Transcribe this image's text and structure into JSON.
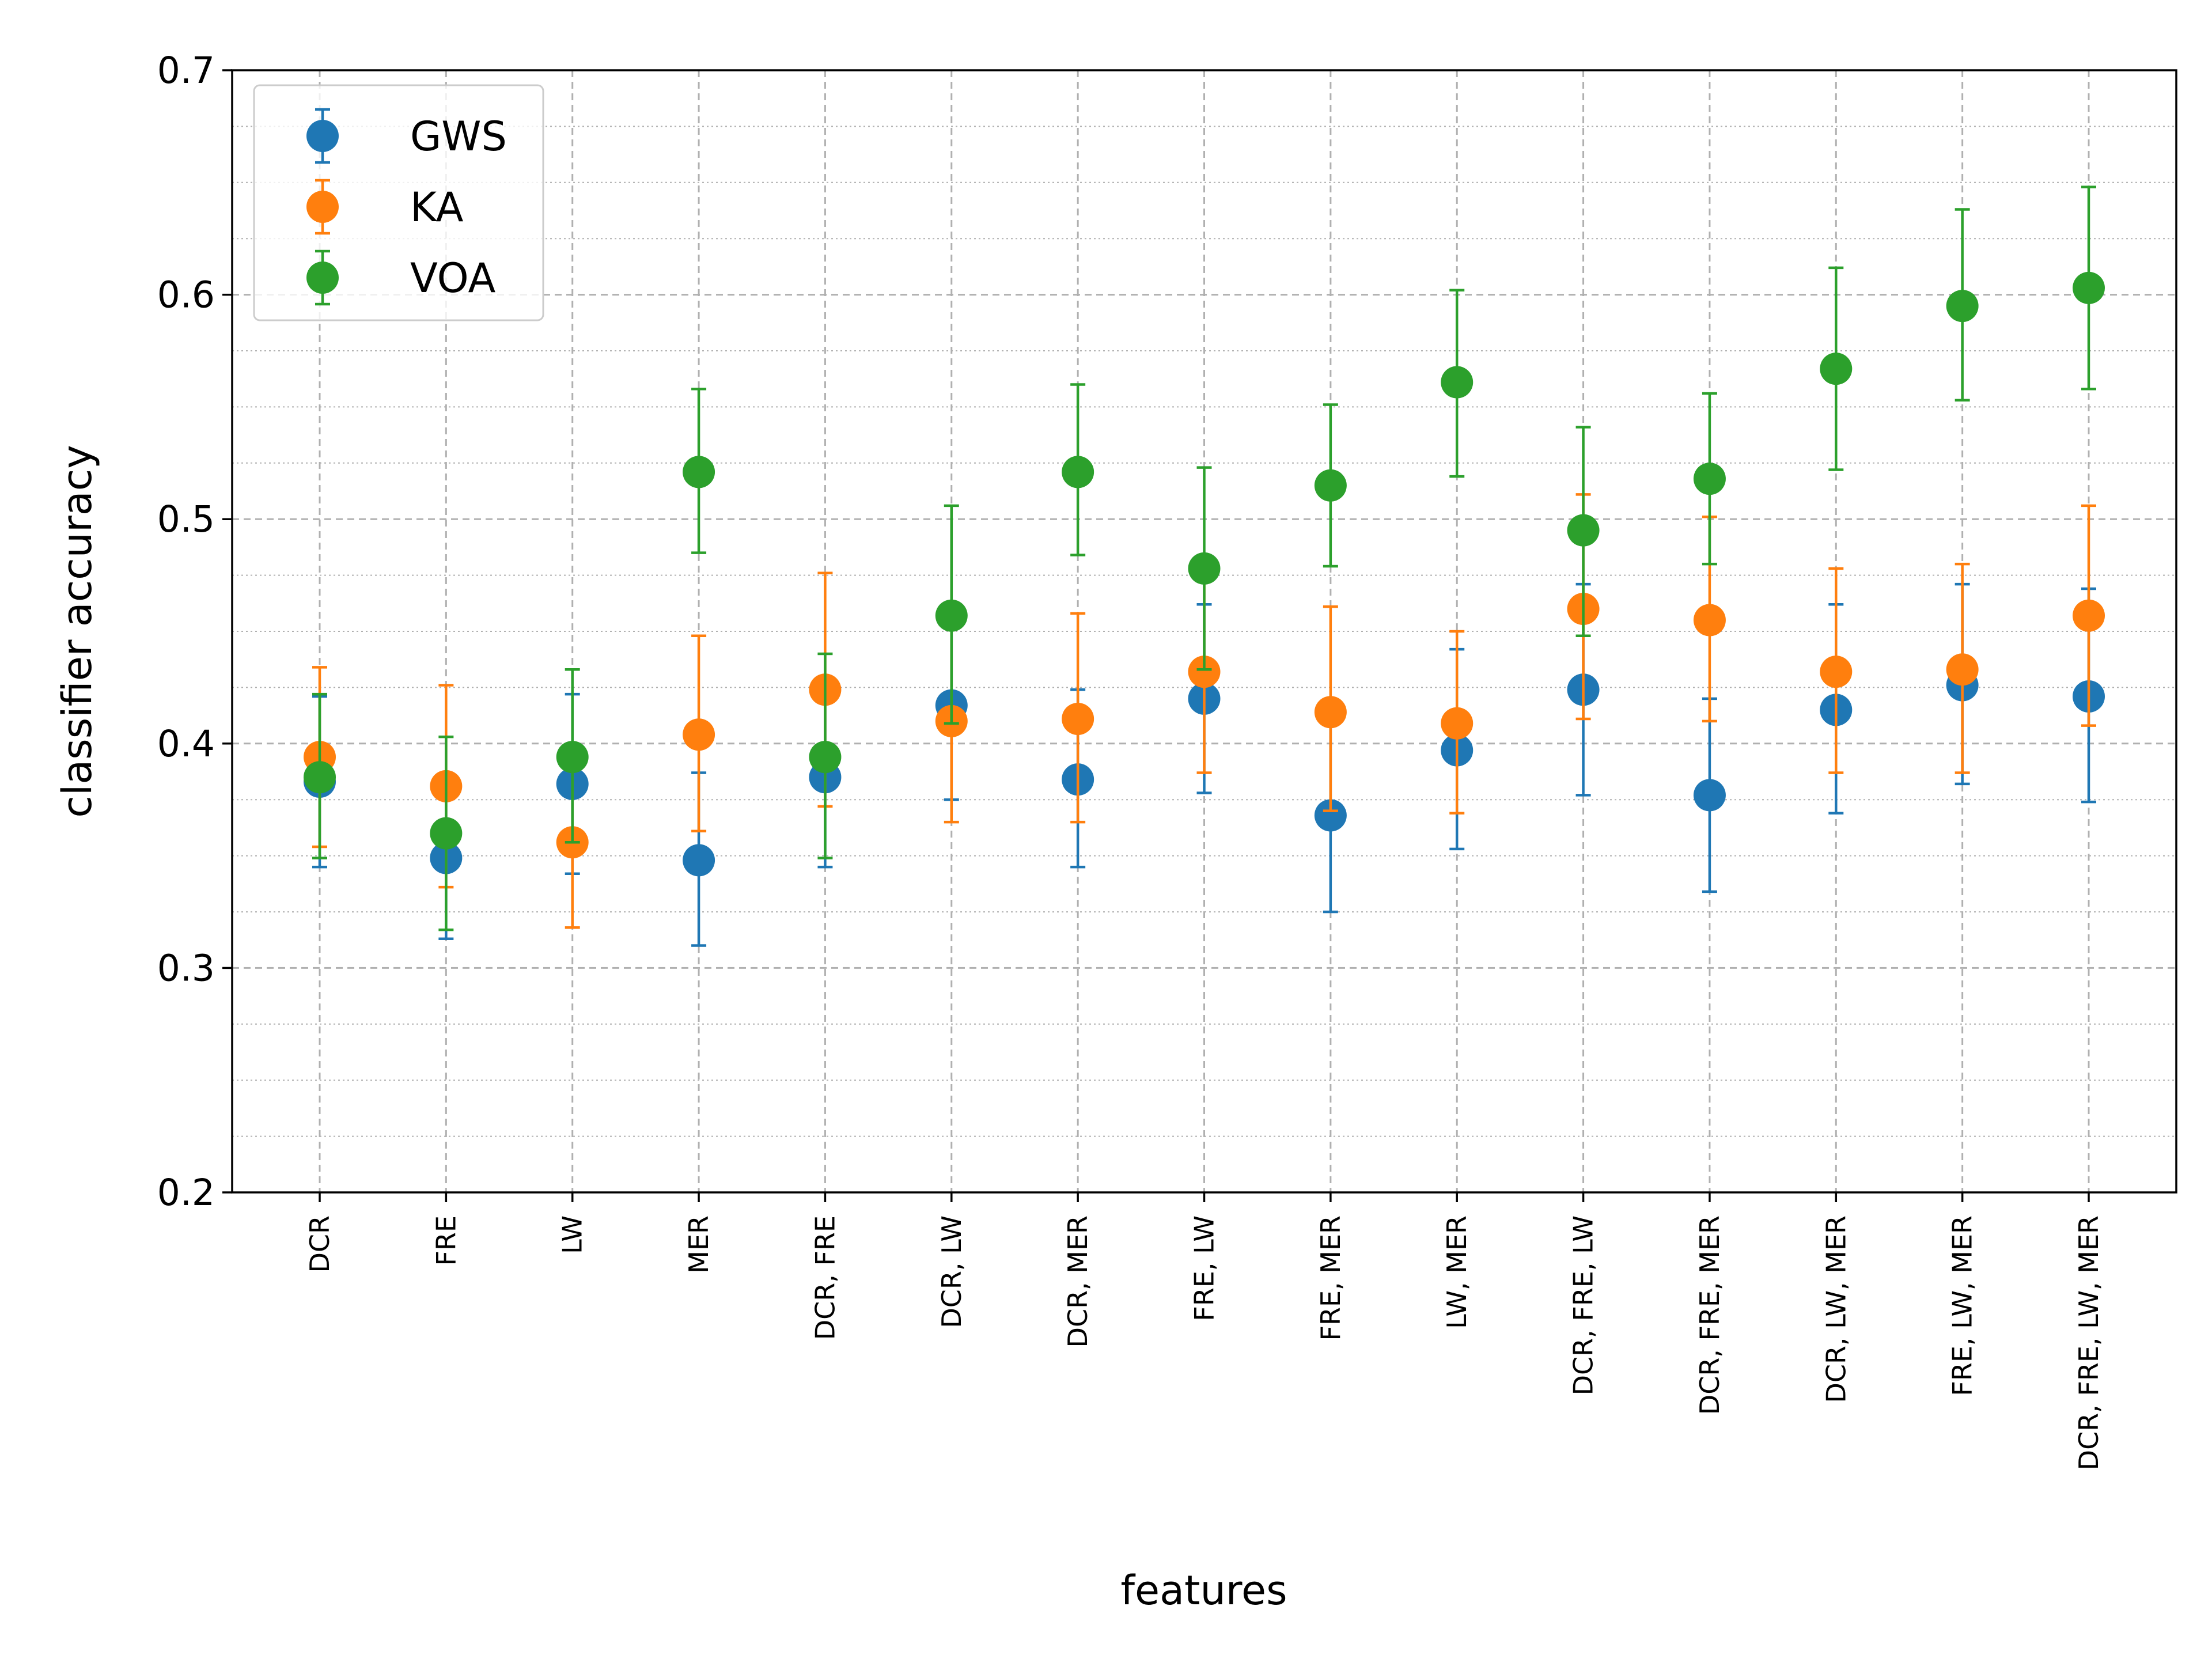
{
  "chart_data": {
    "type": "scatter",
    "title": "",
    "xlabel": "features",
    "ylabel": "classifier accuracy",
    "ylim": [
      0.2,
      0.7
    ],
    "yticks": [
      "0.2",
      "0.3",
      "0.4",
      "0.5",
      "0.6",
      "0.7"
    ],
    "grid": true,
    "legend_position": "top-left",
    "categories": [
      "DCR",
      "FRE",
      "LW",
      "MER",
      "DCR, FRE",
      "DCR, LW",
      "DCR, MER",
      "FRE, LW",
      "FRE, MER",
      "LW, MER",
      "DCR, FRE, LW",
      "DCR, FRE, MER",
      "DCR, LW, MER",
      "FRE, LW, MER",
      "DCR, FRE, LW, MER"
    ],
    "series": [
      {
        "name": "GWS",
        "color": "#1f77b4",
        "values": [
          0.383,
          0.349,
          0.382,
          0.348,
          0.385,
          0.417,
          0.384,
          0.42,
          0.368,
          0.397,
          0.424,
          0.377,
          0.415,
          0.426,
          0.421
        ],
        "err_low": [
          0.345,
          0.313,
          0.342,
          0.31,
          0.345,
          0.375,
          0.345,
          0.378,
          0.325,
          0.353,
          0.377,
          0.334,
          0.369,
          0.382,
          0.374
        ],
        "err_high": [
          0.421,
          0.385,
          0.422,
          0.387,
          0.425,
          0.46,
          0.424,
          0.462,
          0.41,
          0.442,
          0.471,
          0.42,
          0.462,
          0.471,
          0.469
        ]
      },
      {
        "name": "KA",
        "color": "#ff7f0e",
        "values": [
          0.394,
          0.381,
          0.356,
          0.404,
          0.424,
          0.41,
          0.411,
          0.432,
          0.414,
          0.409,
          0.46,
          0.455,
          0.432,
          0.433,
          0.457
        ],
        "err_low": [
          0.354,
          0.336,
          0.318,
          0.361,
          0.372,
          0.365,
          0.365,
          0.387,
          0.37,
          0.369,
          0.411,
          0.41,
          0.387,
          0.387,
          0.408
        ],
        "err_high": [
          0.434,
          0.426,
          0.394,
          0.448,
          0.476,
          0.455,
          0.458,
          0.477,
          0.461,
          0.45,
          0.511,
          0.501,
          0.478,
          0.48,
          0.506
        ]
      },
      {
        "name": "VOA",
        "color": "#2ca02c",
        "values": [
          0.385,
          0.36,
          0.394,
          0.521,
          0.394,
          0.457,
          0.521,
          0.478,
          0.515,
          0.561,
          0.495,
          0.518,
          0.567,
          0.595,
          0.603
        ],
        "err_low": [
          0.349,
          0.317,
          0.356,
          0.485,
          0.349,
          0.409,
          0.484,
          0.433,
          0.479,
          0.519,
          0.448,
          0.48,
          0.522,
          0.553,
          0.558
        ],
        "err_high": [
          0.422,
          0.403,
          0.433,
          0.558,
          0.44,
          0.506,
          0.56,
          0.523,
          0.551,
          0.602,
          0.541,
          0.556,
          0.612,
          0.638,
          0.648
        ]
      }
    ]
  }
}
